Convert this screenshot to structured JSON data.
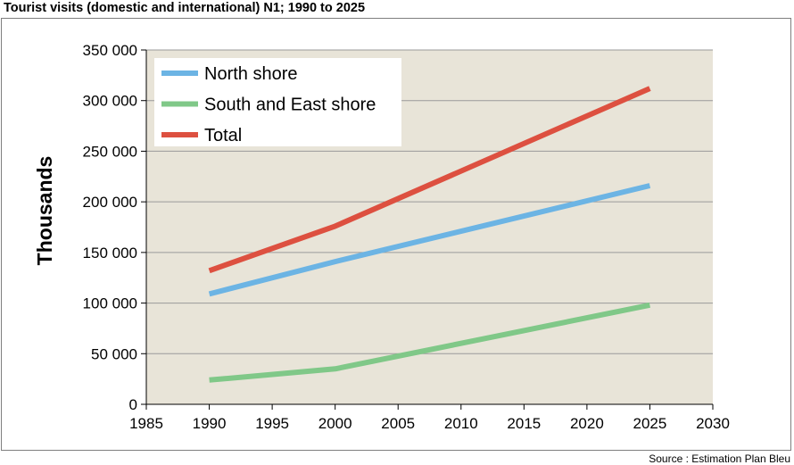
{
  "title": "Tourist visits (domestic and international) N1; 1990 to 2025",
  "source": "Source : Estimation Plan Bleu",
  "chart_data": {
    "type": "line",
    "title": "Tourist visits (domestic and international) N1; 1990 to 2025",
    "xlabel": "",
    "ylabel": "Thousands",
    "xlim": [
      1985,
      2030
    ],
    "ylim": [
      0,
      350000
    ],
    "x_ticks": [
      "1985",
      "1990",
      "1995",
      "2000",
      "2005",
      "2010",
      "2015",
      "2020",
      "2025",
      "2030"
    ],
    "y_ticks": [
      "0",
      "50 000",
      "100 000",
      "150 000",
      "200 000",
      "250 000",
      "300 000",
      "350 000"
    ],
    "grid": true,
    "legend_position": "top-left",
    "plot_background": "#e8e4d8",
    "series": [
      {
        "name": "North shore",
        "color": "#6cb4e4",
        "x": [
          1990,
          2000,
          2025
        ],
        "values": [
          109000,
          141000,
          216000
        ]
      },
      {
        "name": "South and East shore",
        "color": "#80c888",
        "x": [
          1990,
          2000,
          2025
        ],
        "values": [
          24000,
          35000,
          98000
        ]
      },
      {
        "name": "Total",
        "color": "#dd5040",
        "x": [
          1990,
          2000,
          2025
        ],
        "values": [
          132000,
          176000,
          312000
        ]
      }
    ]
  }
}
